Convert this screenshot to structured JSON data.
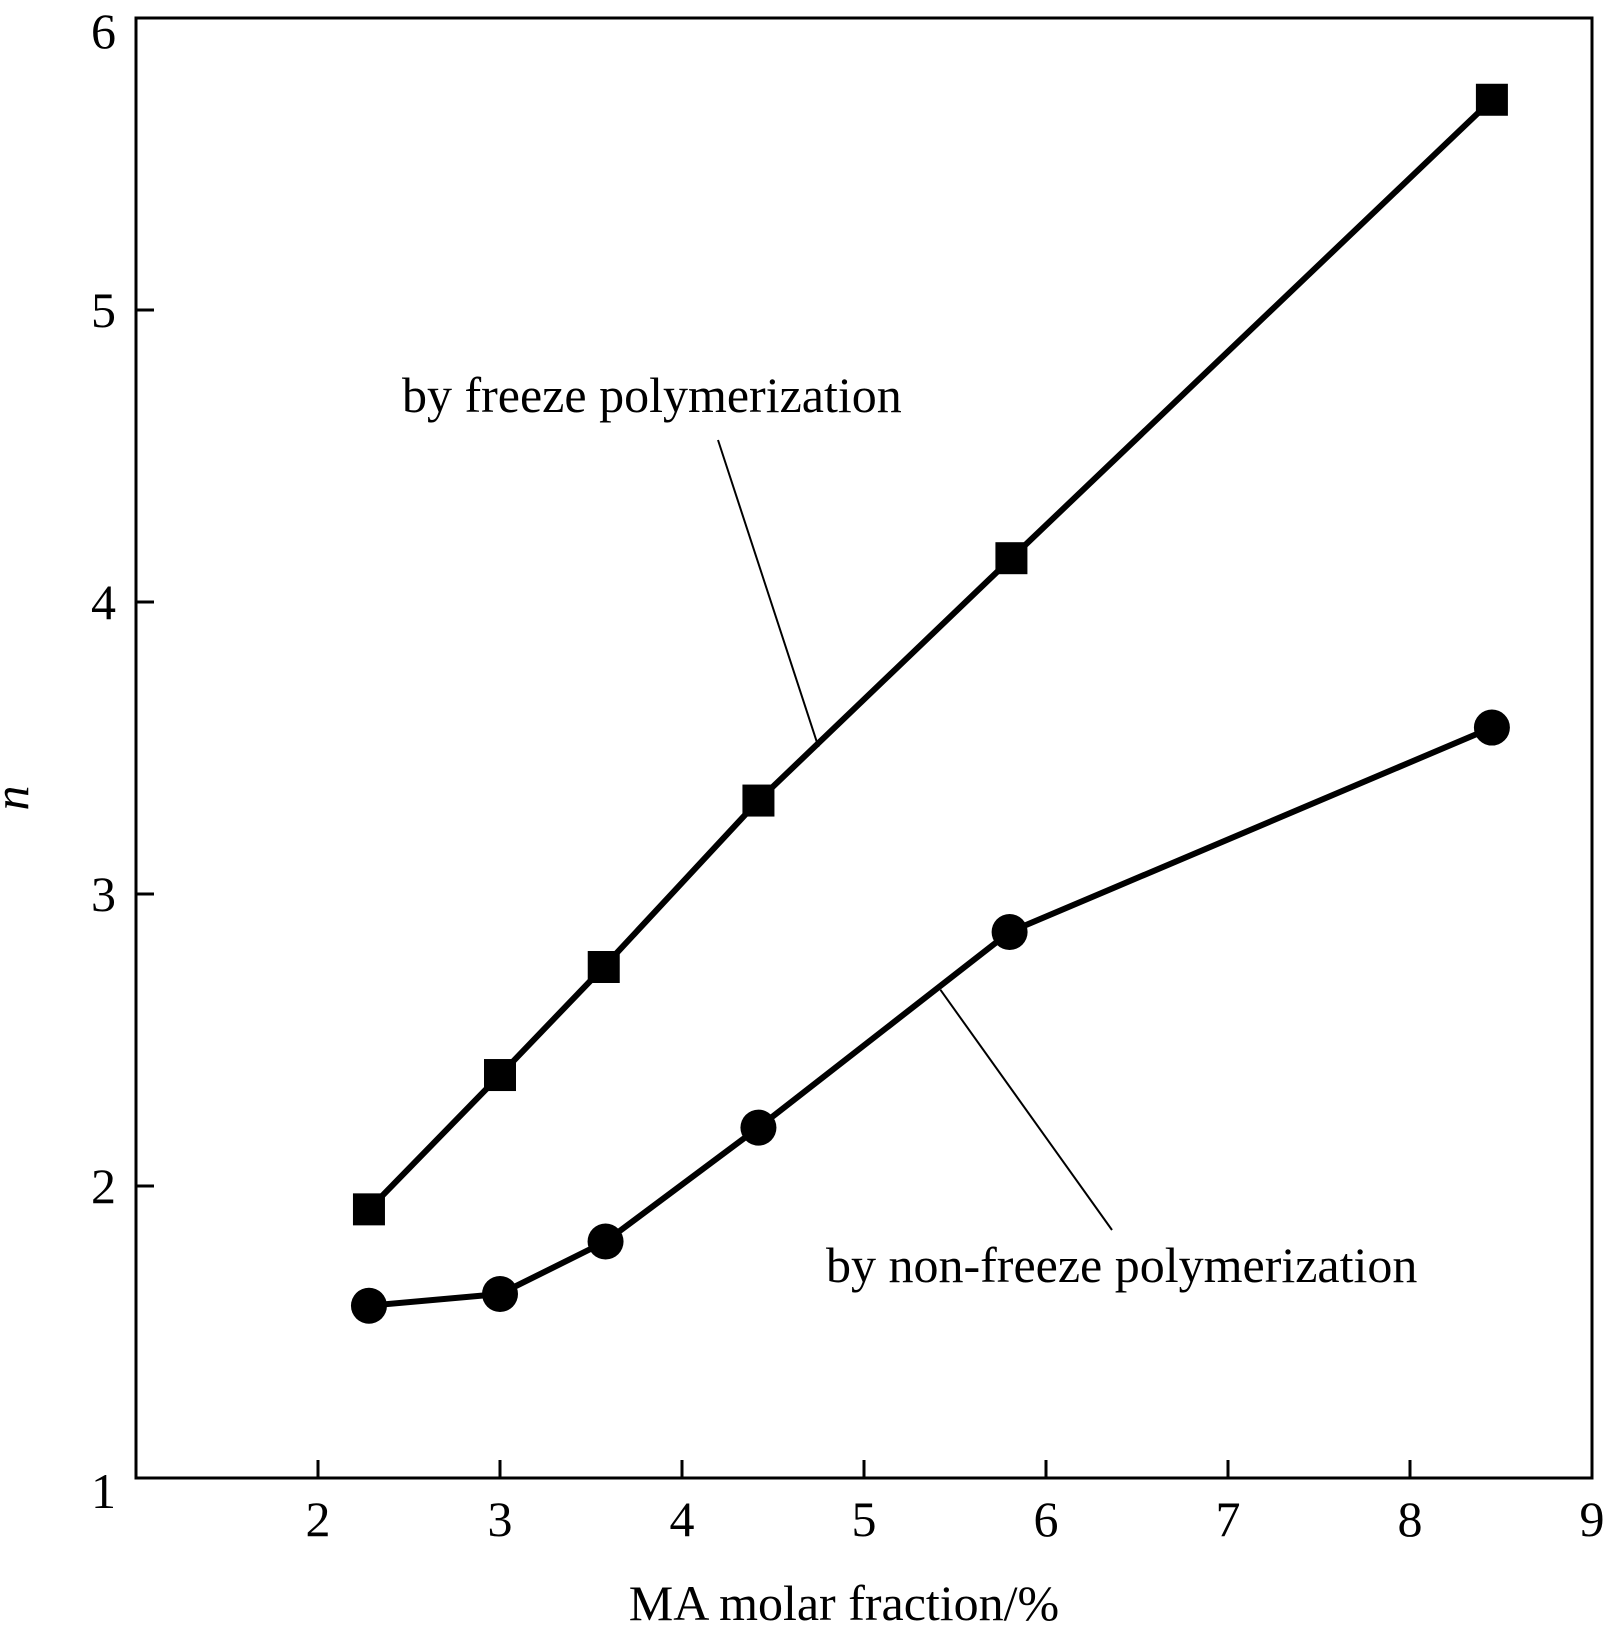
{
  "chart_data": {
    "type": "line",
    "xlabel": "MA molar fraction/%",
    "ylabel": "n",
    "xlim": [
      1,
      9
    ],
    "ylim": [
      1,
      6
    ],
    "xticks": [
      2,
      3,
      4,
      5,
      6,
      7,
      8,
      9
    ],
    "yticks": [
      1,
      2,
      3,
      4,
      5,
      6
    ],
    "grid": false,
    "legend": "none",
    "series": [
      {
        "marker": "square",
        "x": [
          2.28,
          3.0,
          3.57,
          4.42,
          5.81,
          8.45
        ],
        "y": [
          1.92,
          2.38,
          2.75,
          3.32,
          4.15,
          5.72
        ]
      },
      {
        "marker": "circle",
        "x": [
          2.28,
          3.0,
          3.58,
          4.42,
          5.8,
          8.45
        ],
        "y": [
          1.59,
          1.63,
          1.81,
          2.2,
          2.87,
          3.57
        ]
      }
    ],
    "annotations": [
      {
        "text": "by freeze polymerization",
        "series": 0
      },
      {
        "text": "by non-freeze polymerization",
        "series": 1
      }
    ]
  }
}
